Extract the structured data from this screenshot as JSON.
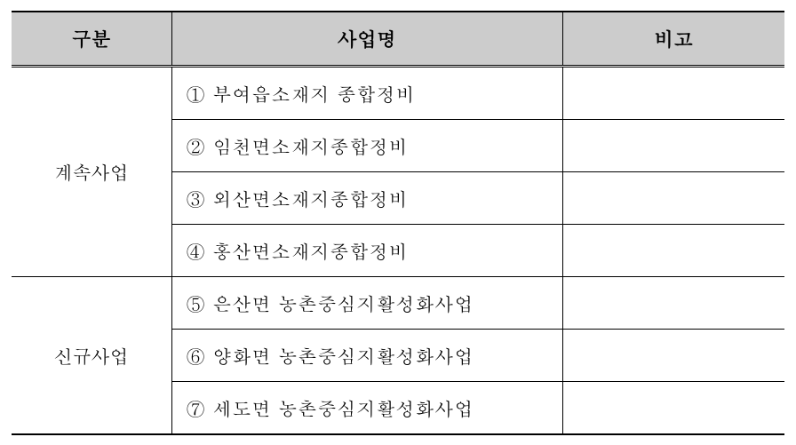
{
  "table": {
    "headers": {
      "category": "구분",
      "project": "사업명",
      "note": "비고"
    },
    "columns": {
      "category_width": 180,
      "project_width": 440,
      "note_width": 250
    },
    "groups": [
      {
        "category": "계속사업",
        "rows": [
          {
            "project": "① 부여읍소재지 종합정비",
            "note": ""
          },
          {
            "project": "② 임천면소재지종합정비",
            "note": ""
          },
          {
            "project": "③ 외산면소재지종합정비",
            "note": ""
          },
          {
            "project": "④ 홍산면소재지종합정비",
            "note": ""
          }
        ]
      },
      {
        "category": "신규사업",
        "rows": [
          {
            "project": "⑤ 은산면 농촌중심지활성화사업",
            "note": ""
          },
          {
            "project": "⑥ 양화면 농촌중심지활성화사업",
            "note": ""
          },
          {
            "project": "⑦ 세도면 농촌중심지활성화사업",
            "note": ""
          }
        ]
      }
    ],
    "styling": {
      "header_bg_color": "#cccccc",
      "border_color": "#000000",
      "outer_border_width": 2,
      "inner_border_width": 1,
      "header_divider_style": "double",
      "font_family": "Batang, Gulim, serif",
      "header_fontsize": 22,
      "body_fontsize": 21,
      "header_fontweight": "bold",
      "cell_padding_v": 14,
      "cell_padding_h": 12,
      "background_color": "#ffffff"
    }
  }
}
